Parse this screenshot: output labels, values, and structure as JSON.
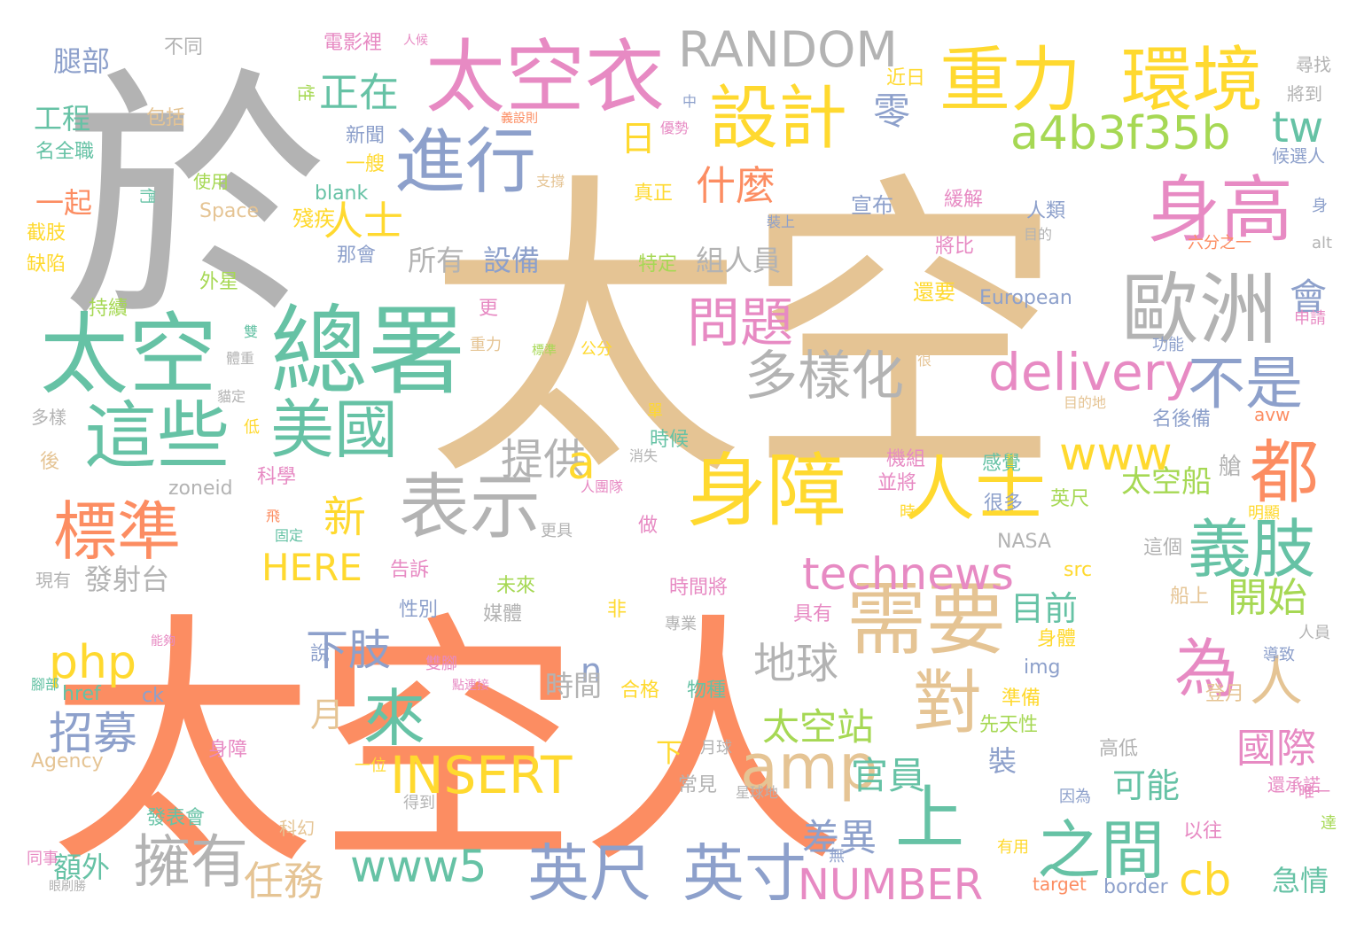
{
  "cloud": {
    "colors": {
      "orange": "#fc8d62",
      "tan": "#e5c494",
      "gray": "#b3b3b3",
      "teal": "#66c2a5",
      "yellow": "#ffd92f",
      "pink": "#e78ac3",
      "blue": "#8da0cb",
      "green": "#a6d854"
    },
    "words": [
      {
        "text": "太空",
        "color": "tan"
      },
      {
        "text": "太空人",
        "color": "orange"
      },
      {
        "text": "於",
        "color": "gray"
      },
      {
        "text": "太空",
        "color": "teal"
      },
      {
        "text": "總署",
        "color": "teal"
      },
      {
        "text": "太空衣",
        "color": "pink"
      },
      {
        "text": "重力",
        "color": "yellow"
      },
      {
        "text": "環境",
        "color": "yellow"
      },
      {
        "text": "RANDOM",
        "color": "gray"
      },
      {
        "text": "設計",
        "color": "yellow"
      },
      {
        "text": "進行",
        "color": "blue"
      },
      {
        "text": "身高",
        "color": "pink"
      },
      {
        "text": "歐洲",
        "color": "gray"
      },
      {
        "text": "身障",
        "color": "yellow"
      },
      {
        "text": "人士",
        "color": "yellow"
      },
      {
        "text": "需要",
        "color": "tan"
      },
      {
        "text": "都",
        "color": "orange"
      },
      {
        "text": "這些",
        "color": "teal"
      },
      {
        "text": "美國",
        "color": "teal"
      },
      {
        "text": "標準",
        "color": "orange"
      },
      {
        "text": "表示",
        "color": "gray"
      },
      {
        "text": "義肢",
        "color": "teal"
      },
      {
        "text": "英尺",
        "color": "blue"
      },
      {
        "text": "英寸",
        "color": "blue"
      },
      {
        "text": "擁有",
        "color": "gray"
      },
      {
        "text": "之間",
        "color": "teal"
      },
      {
        "text": "對",
        "color": "tan"
      },
      {
        "text": "amp",
        "color": "tan"
      },
      {
        "text": "來",
        "color": "teal"
      },
      {
        "text": "上",
        "color": "teal"
      },
      {
        "text": "為",
        "color": "pink"
      },
      {
        "text": "人",
        "color": "tan"
      },
      {
        "text": "a4b3f35b",
        "color": "green"
      },
      {
        "text": "tw",
        "color": "teal"
      },
      {
        "text": "delivery",
        "color": "pink"
      },
      {
        "text": "不是",
        "color": "blue"
      },
      {
        "text": "technews",
        "color": "pink"
      },
      {
        "text": "www",
        "color": "yellow"
      },
      {
        "text": "www5",
        "color": "teal"
      },
      {
        "text": "NUMBER",
        "color": "pink"
      },
      {
        "text": "INSERT",
        "color": "yellow"
      },
      {
        "text": "php",
        "color": "yellow"
      },
      {
        "text": "HERE",
        "color": "yellow"
      },
      {
        "text": "問題",
        "color": "pink"
      },
      {
        "text": "多樣化",
        "color": "gray"
      },
      {
        "text": "正在",
        "color": "teal"
      },
      {
        "text": "什麼",
        "color": "orange"
      },
      {
        "text": "人士",
        "color": "yellow"
      },
      {
        "text": "零",
        "color": "blue"
      },
      {
        "text": "會",
        "color": "blue"
      },
      {
        "text": "新",
        "color": "yellow"
      },
      {
        "text": "提供",
        "color": "gray"
      },
      {
        "text": "a",
        "color": "yellow"
      },
      {
        "text": "招募",
        "color": "blue"
      },
      {
        "text": "下肢",
        "color": "blue"
      },
      {
        "text": "地球",
        "color": "gray"
      },
      {
        "text": "太空站",
        "color": "green"
      },
      {
        "text": "太空船",
        "color": "green"
      },
      {
        "text": "國際",
        "color": "pink"
      },
      {
        "text": "開始",
        "color": "green"
      },
      {
        "text": "任務",
        "color": "tan"
      },
      {
        "text": "官員",
        "color": "teal"
      },
      {
        "text": "差異",
        "color": "blue"
      },
      {
        "text": "cb",
        "color": "yellow"
      },
      {
        "text": "腿部",
        "color": "blue"
      },
      {
        "text": "工程",
        "color": "teal"
      },
      {
        "text": "一起",
        "color": "orange"
      },
      {
        "text": "月",
        "color": "tan"
      },
      {
        "text": "n",
        "color": "blue"
      },
      {
        "text": "日",
        "color": "yellow"
      },
      {
        "text": "目前",
        "color": "teal"
      },
      {
        "text": "可能",
        "color": "teal"
      },
      {
        "text": "所有",
        "color": "gray"
      },
      {
        "text": "設備",
        "color": "blue"
      },
      {
        "text": "組人員",
        "color": "gray"
      },
      {
        "text": "時間",
        "color": "gray"
      },
      {
        "text": "發射台",
        "color": "gray"
      },
      {
        "text": "額外",
        "color": "teal"
      },
      {
        "text": "急情",
        "color": "teal"
      },
      {
        "text": "不同",
        "color": "gray"
      },
      {
        "text": "包括",
        "color": "tan"
      },
      {
        "text": "名全職",
        "color": "teal"
      },
      {
        "text": "電影裡",
        "color": "pink"
      },
      {
        "text": "人候",
        "color": "pink"
      },
      {
        "text": "尋找",
        "color": "gray"
      },
      {
        "text": "將到",
        "color": "gray"
      },
      {
        "text": "候選人",
        "color": "blue"
      },
      {
        "text": "近日",
        "color": "yellow"
      },
      {
        "text": "新聞",
        "color": "blue"
      },
      {
        "text": "一艘",
        "color": "yellow"
      },
      {
        "text": "使用",
        "color": "green"
      },
      {
        "text": "blank",
        "color": "teal"
      },
      {
        "text": "Space",
        "color": "tan"
      },
      {
        "text": "殘疾",
        "color": "yellow"
      },
      {
        "text": "截肢",
        "color": "yellow"
      },
      {
        "text": "缺陷",
        "color": "yellow"
      },
      {
        "text": "外星",
        "color": "green"
      },
      {
        "text": "持續",
        "color": "green"
      },
      {
        "text": "宣布",
        "color": "blue"
      },
      {
        "text": "緩解",
        "color": "pink"
      },
      {
        "text": "人類",
        "color": "blue"
      },
      {
        "text": "將比",
        "color": "pink"
      },
      {
        "text": "還要",
        "color": "yellow"
      },
      {
        "text": "European",
        "color": "blue"
      },
      {
        "text": "特定",
        "color": "green"
      },
      {
        "text": "真正",
        "color": "yellow"
      },
      {
        "text": "那會",
        "color": "blue"
      },
      {
        "text": "六分之一",
        "color": "orange"
      },
      {
        "text": "alt",
        "color": "gray"
      },
      {
        "text": "申請",
        "color": "pink"
      },
      {
        "text": "功能",
        "color": "blue"
      },
      {
        "text": "名後備",
        "color": "blue"
      },
      {
        "text": "avw",
        "color": "orange"
      },
      {
        "text": "艙",
        "color": "gray"
      },
      {
        "text": "時候",
        "color": "teal"
      },
      {
        "text": "科學",
        "color": "pink"
      },
      {
        "text": "zoneid",
        "color": "gray"
      },
      {
        "text": "機組",
        "color": "pink"
      },
      {
        "text": "感覺",
        "color": "teal"
      },
      {
        "text": "並將",
        "color": "pink"
      },
      {
        "text": "英尺",
        "color": "green"
      },
      {
        "text": "很多",
        "color": "blue"
      },
      {
        "text": "NASA",
        "color": "gray"
      },
      {
        "text": "src",
        "color": "yellow"
      },
      {
        "text": "這個",
        "color": "gray"
      },
      {
        "text": "船上",
        "color": "tan"
      },
      {
        "text": "現有",
        "color": "gray"
      },
      {
        "text": "告訴",
        "color": "pink"
      },
      {
        "text": "性別",
        "color": "blue"
      },
      {
        "text": "媒體",
        "color": "gray"
      },
      {
        "text": "未來",
        "color": "green"
      },
      {
        "text": "時間將",
        "color": "pink"
      },
      {
        "text": "具有",
        "color": "pink"
      },
      {
        "text": "說",
        "color": "blue"
      },
      {
        "text": "img",
        "color": "blue"
      },
      {
        "text": "身體",
        "color": "yellow"
      },
      {
        "text": "導致",
        "color": "blue"
      },
      {
        "text": "人員",
        "color": "gray"
      },
      {
        "text": "href",
        "color": "teal"
      },
      {
        "text": "ck",
        "color": "blue"
      },
      {
        "text": "合格",
        "color": "yellow"
      },
      {
        "text": "物種",
        "color": "teal"
      },
      {
        "text": "準備",
        "color": "yellow"
      },
      {
        "text": "先天性",
        "color": "green"
      },
      {
        "text": "登月",
        "color": "tan"
      },
      {
        "text": "高低",
        "color": "gray"
      },
      {
        "text": "Agency",
        "color": "tan"
      },
      {
        "text": "身障",
        "color": "pink"
      },
      {
        "text": "下",
        "color": "yellow"
      },
      {
        "text": "裝",
        "color": "blue"
      },
      {
        "text": "常見",
        "color": "gray"
      },
      {
        "text": "月球",
        "color": "gray"
      },
      {
        "text": "還承諾",
        "color": "pink"
      },
      {
        "text": "發表會",
        "color": "teal"
      },
      {
        "text": "科幻",
        "color": "tan"
      },
      {
        "text": "得到",
        "color": "gray"
      },
      {
        "text": "因為",
        "color": "blue"
      },
      {
        "text": "以往",
        "color": "pink"
      },
      {
        "text": "有用",
        "color": "yellow"
      },
      {
        "text": "target",
        "color": "orange"
      },
      {
        "text": "border",
        "color": "blue"
      },
      {
        "text": "更",
        "color": "pink"
      },
      {
        "text": "公分",
        "color": "yellow"
      },
      {
        "text": "重力",
        "color": "tan"
      },
      {
        "text": "飛",
        "color": "orange"
      },
      {
        "text": "固定",
        "color": "teal"
      },
      {
        "text": "更具",
        "color": "gray"
      },
      {
        "text": "做",
        "color": "pink"
      },
      {
        "text": "非",
        "color": "yellow"
      },
      {
        "text": "專業",
        "color": "gray"
      },
      {
        "text": "一位",
        "color": "yellow"
      },
      {
        "text": "雙腳",
        "color": "pink"
      },
      {
        "text": "很",
        "color": "tan"
      },
      {
        "text": "單",
        "color": "yellow"
      },
      {
        "text": "目的地",
        "color": "tan"
      },
      {
        "text": "消失",
        "color": "gray"
      },
      {
        "text": "明顯",
        "color": "yellow"
      },
      {
        "text": "時",
        "color": "yellow"
      },
      {
        "text": "無",
        "color": "blue"
      },
      {
        "text": "後",
        "color": "tan"
      },
      {
        "text": "多樣",
        "color": "gray"
      },
      {
        "text": "低",
        "color": "yellow"
      },
      {
        "text": "雙",
        "color": "teal"
      },
      {
        "text": "中",
        "color": "blue"
      },
      {
        "text": "優勢",
        "color": "pink"
      },
      {
        "text": "支撐",
        "color": "tan"
      },
      {
        "text": "義設則",
        "color": "orange"
      },
      {
        "text": "性",
        "color": "green"
      },
      {
        "text": "們",
        "color": "teal"
      },
      {
        "text": "身",
        "color": "blue"
      },
      {
        "text": "裝上",
        "color": "blue"
      },
      {
        "text": "目的",
        "color": "gray"
      },
      {
        "text": "唯一",
        "color": "pink"
      },
      {
        "text": "達",
        "color": "green"
      },
      {
        "text": "體重",
        "color": "gray"
      },
      {
        "text": "貓定",
        "color": "gray"
      },
      {
        "text": "能夠",
        "color": "pink"
      },
      {
        "text": "腳部",
        "color": "teal"
      },
      {
        "text": "點連接",
        "color": "pink"
      },
      {
        "text": "人團隊",
        "color": "pink"
      },
      {
        "text": "同事",
        "color": "pink"
      },
      {
        "text": "眼刷勝",
        "color": "gray"
      },
      {
        "text": "標準",
        "color": "green"
      },
      {
        "text": "星球地",
        "color": "gray"
      }
    ]
  }
}
